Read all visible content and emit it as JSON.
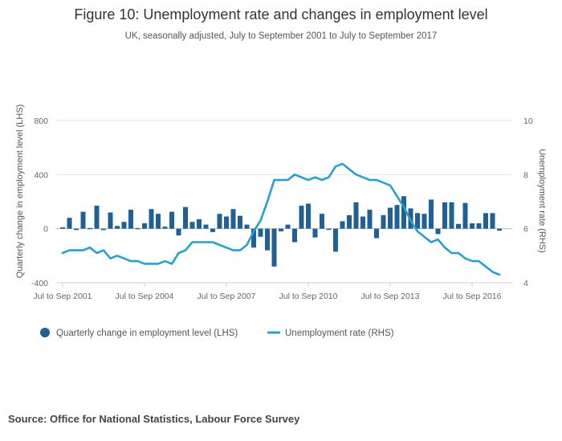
{
  "chart_data": {
    "type": "bar+line",
    "title": "Figure 10: Unemployment rate and changes in employment level",
    "subtitle": "UK, seasonally adjusted, July to September 2001 to July to September 2017",
    "ylabel_left": "Quarterly change in employment level (LHS)",
    "ylabel_right": "Unemployment rate (RHS)",
    "ylim_left": [
      -400,
      800
    ],
    "ylim_right": [
      4,
      10
    ],
    "yticks_left": [
      "-400",
      "0",
      "400",
      "800"
    ],
    "yticks_right": [
      "4",
      "6",
      "8",
      "10"
    ],
    "xtick_labels": [
      "Jul to Sep 2001",
      "Jul to Sep 2004",
      "Jul to Sep 2007",
      "Jul to Sep 2010",
      "Jul to Sep 2013",
      "Jul to Sep 2016"
    ],
    "grid": true,
    "series": [
      {
        "name": "Quarterly change in employment level (LHS)",
        "type": "bar",
        "color": "#206095",
        "values": [
          10,
          80,
          -10,
          125,
          5,
          170,
          -10,
          120,
          20,
          50,
          140,
          5,
          40,
          145,
          110,
          15,
          125,
          -50,
          160,
          50,
          70,
          30,
          -25,
          110,
          90,
          145,
          95,
          30,
          -140,
          -60,
          -160,
          -280,
          -20,
          30,
          -100,
          170,
          185,
          -65,
          110,
          -5,
          -170,
          55,
          100,
          195,
          90,
          140,
          -70,
          100,
          155,
          175,
          240,
          150,
          115,
          110,
          215,
          -40,
          195,
          195,
          35,
          190,
          40,
          40,
          115,
          115,
          -15
        ]
      },
      {
        "name": "Unemployment rate (RHS)",
        "type": "line",
        "color": "#27a0cc",
        "values": [
          5.1,
          5.2,
          5.2,
          5.2,
          5.3,
          5.1,
          5.2,
          4.9,
          5.0,
          4.9,
          4.8,
          4.8,
          4.7,
          4.7,
          4.7,
          4.8,
          4.7,
          5.1,
          5.2,
          5.5,
          5.5,
          5.5,
          5.5,
          5.4,
          5.3,
          5.2,
          5.2,
          5.4,
          5.9,
          6.3,
          7.0,
          7.8,
          7.8,
          7.8,
          8.0,
          7.9,
          7.8,
          7.9,
          7.8,
          7.9,
          8.3,
          8.4,
          8.2,
          8.0,
          7.9,
          7.8,
          7.8,
          7.7,
          7.6,
          7.2,
          6.8,
          6.3,
          5.9,
          5.7,
          5.5,
          5.6,
          5.3,
          5.1,
          5.1,
          4.9,
          4.8,
          4.8,
          4.6,
          4.4,
          4.3
        ]
      }
    ]
  },
  "legend": {
    "bar_label": "Quarterly change in employment level (LHS)",
    "line_label": "Unemployment rate (RHS)"
  },
  "source": "Source: Office for National Statistics, Labour Force Survey"
}
